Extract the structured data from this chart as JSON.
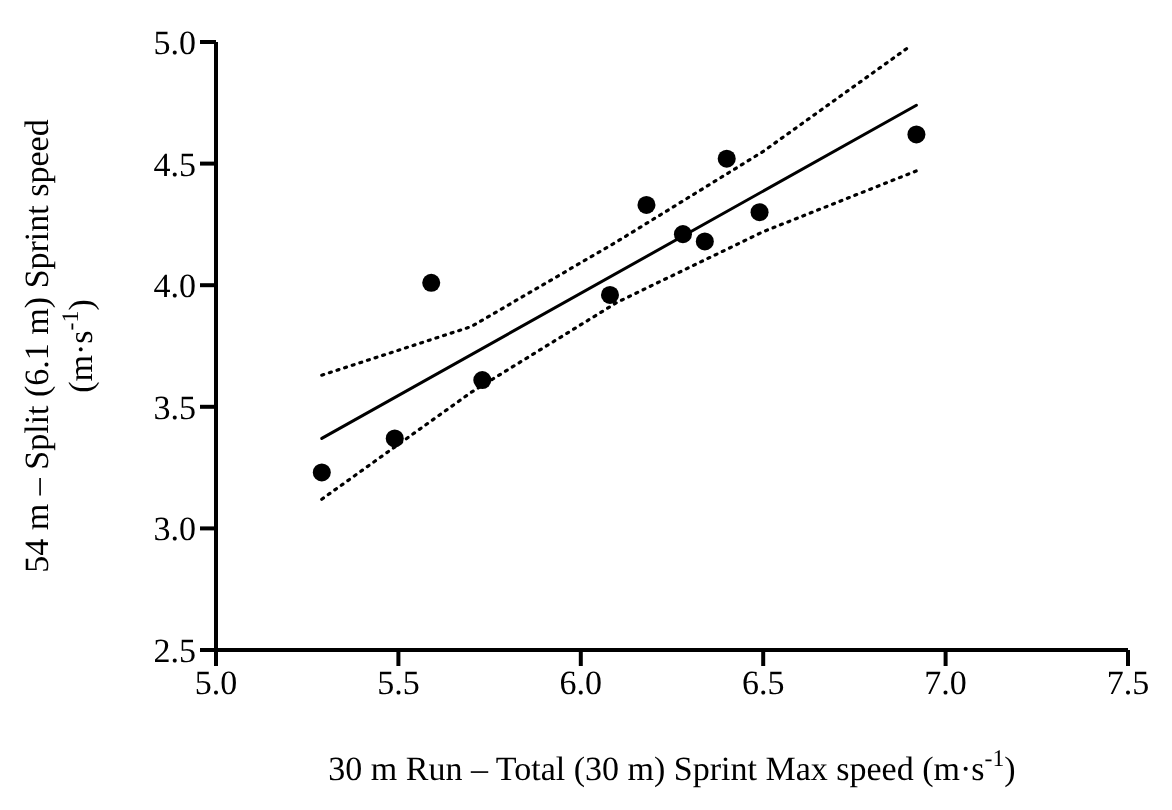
{
  "chart_data": {
    "type": "scatter",
    "xlabel": "30 m Run – Total (30 m) Sprint Max speed (m·s$^{-1}$)",
    "ylabel": "54 m – Split (6.1 m) Sprint speed (m·s$^{-1}$)",
    "xlim": [
      5.0,
      7.5
    ],
    "xticks": [
      {
        "value": 5.0,
        "label": "5.0"
      },
      {
        "value": 5.5,
        "label": "5.5"
      },
      {
        "value": 6.0,
        "label": "6.0"
      },
      {
        "value": 6.5,
        "label": "6.5"
      },
      {
        "value": 7.0,
        "label": "7.0"
      },
      {
        "value": 7.5,
        "label": "7.5"
      }
    ],
    "ylim": [
      2.5,
      5.0
    ],
    "yticks": [
      {
        "value": 2.5,
        "label": "2.5"
      },
      {
        "value": 3.0,
        "label": "3.0"
      },
      {
        "value": 3.5,
        "label": "3.5"
      },
      {
        "value": 4.0,
        "label": "4.0"
      },
      {
        "value": 4.5,
        "label": "4.5"
      },
      {
        "value": 5.0,
        "label": "5.0"
      }
    ],
    "grid": false,
    "marker": "circle",
    "series": [
      {
        "color": "#000000",
        "x": [
          5.29,
          5.49,
          5.59,
          5.73,
          6.08,
          6.18,
          6.28,
          6.34,
          6.4,
          6.49,
          6.92
        ],
        "values": [
          3.23,
          3.37,
          4.01,
          3.61,
          3.96,
          4.33,
          4.21,
          4.18,
          4.52,
          4.3,
          4.62
        ]
      },
      {
        "type": "line",
        "color": "#000000",
        "line_style": "solid",
        "marker": "none",
        "x": [
          5.29,
          6.92
        ],
        "values": [
          3.37,
          4.74
        ]
      },
      {
        "type": "line",
        "color": "#000000",
        "line_style": "dotted",
        "marker": "none",
        "x": [
          5.29,
          5.7,
          6.1,
          6.5,
          6.9
        ],
        "values": [
          3.63,
          3.83,
          4.18,
          4.55,
          4.98
        ]
      },
      {
        "type": "line",
        "color": "#000000",
        "line_style": "dotted",
        "marker": "none",
        "x": [
          5.29,
          5.7,
          6.1,
          6.5,
          6.92
        ],
        "values": [
          3.12,
          3.56,
          3.93,
          4.22,
          4.47
        ]
      }
    ]
  }
}
